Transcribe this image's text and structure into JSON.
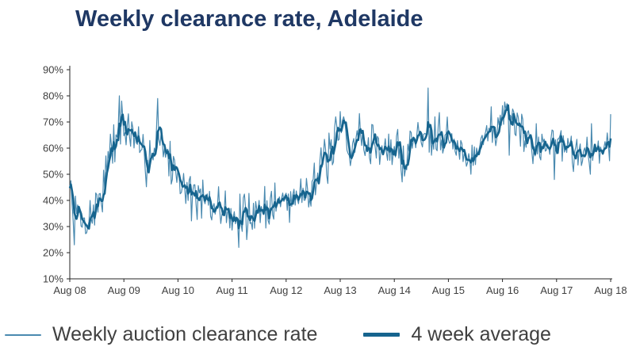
{
  "chart_data": {
    "type": "line",
    "title": "Weekly clearance rate, Adelaide",
    "x_tick_labels": [
      "Aug 08",
      "Aug 09",
      "Aug 10",
      "Aug 11",
      "Aug 12",
      "Aug 13",
      "Aug 14",
      "Aug 15",
      "Aug 16",
      "Aug 17",
      "Aug 18"
    ],
    "y_tick_labels": [
      "10%",
      "20%",
      "30%",
      "40%",
      "50%",
      "60%",
      "70%",
      "80%",
      "90%"
    ],
    "ylim": [
      10,
      90
    ],
    "y_tick_step": 10,
    "grid": false,
    "legend_position": "bottom",
    "axis_color": "#262626",
    "tick_label_color": "#404040",
    "series": [
      {
        "name": "Weekly auction clearance rate",
        "color": "#4a8ab0",
        "width": 1.2,
        "noise_amplitude": 7
      },
      {
        "name": "4 week average",
        "color": "#16648e",
        "width": 2.6,
        "window": 4
      }
    ],
    "points_per_month": 4,
    "noise_seed": 7,
    "value_range": [
      22,
      84
    ],
    "monthly_trend_percent": [
      43,
      37,
      33,
      31,
      33,
      35,
      38,
      43,
      50,
      57,
      63,
      66,
      68,
      66,
      63,
      60,
      57,
      56,
      58,
      62,
      64,
      60,
      55,
      52,
      50,
      47,
      44,
      42,
      41,
      40,
      39,
      37,
      36,
      38,
      37,
      35,
      35,
      33,
      34,
      36,
      35,
      37,
      36,
      38,
      37,
      39,
      38,
      40,
      41,
      40,
      42,
      44,
      43,
      46,
      48,
      50,
      53,
      55,
      58,
      62,
      66,
      63,
      60,
      63,
      65,
      62,
      60,
      63,
      61,
      58,
      61,
      59,
      60,
      57,
      55,
      60,
      63,
      65,
      64,
      66,
      65,
      67,
      68,
      66,
      65,
      62,
      59,
      57,
      55,
      57,
      60,
      63,
      65,
      67,
      66,
      70,
      72,
      70,
      66,
      64,
      66,
      63,
      61,
      64,
      62,
      63,
      60,
      62,
      63,
      64,
      62,
      60,
      58,
      61,
      63,
      60,
      61,
      59,
      60,
      61,
      64
    ],
    "spike_overrides": [
      [
        4,
        23
      ],
      [
        44,
        80
      ],
      [
        46,
        78
      ],
      [
        78,
        79
      ],
      [
        150,
        22
      ],
      [
        157,
        25
      ],
      [
        240,
        74
      ],
      [
        243,
        72
      ],
      [
        318,
        83
      ],
      [
        356,
        50
      ],
      [
        388,
        77
      ],
      [
        430,
        48
      ],
      [
        480,
        73
      ]
    ]
  },
  "colors": {
    "title": "#1f3864",
    "legend_text": "#404040",
    "background": "#ffffff"
  }
}
